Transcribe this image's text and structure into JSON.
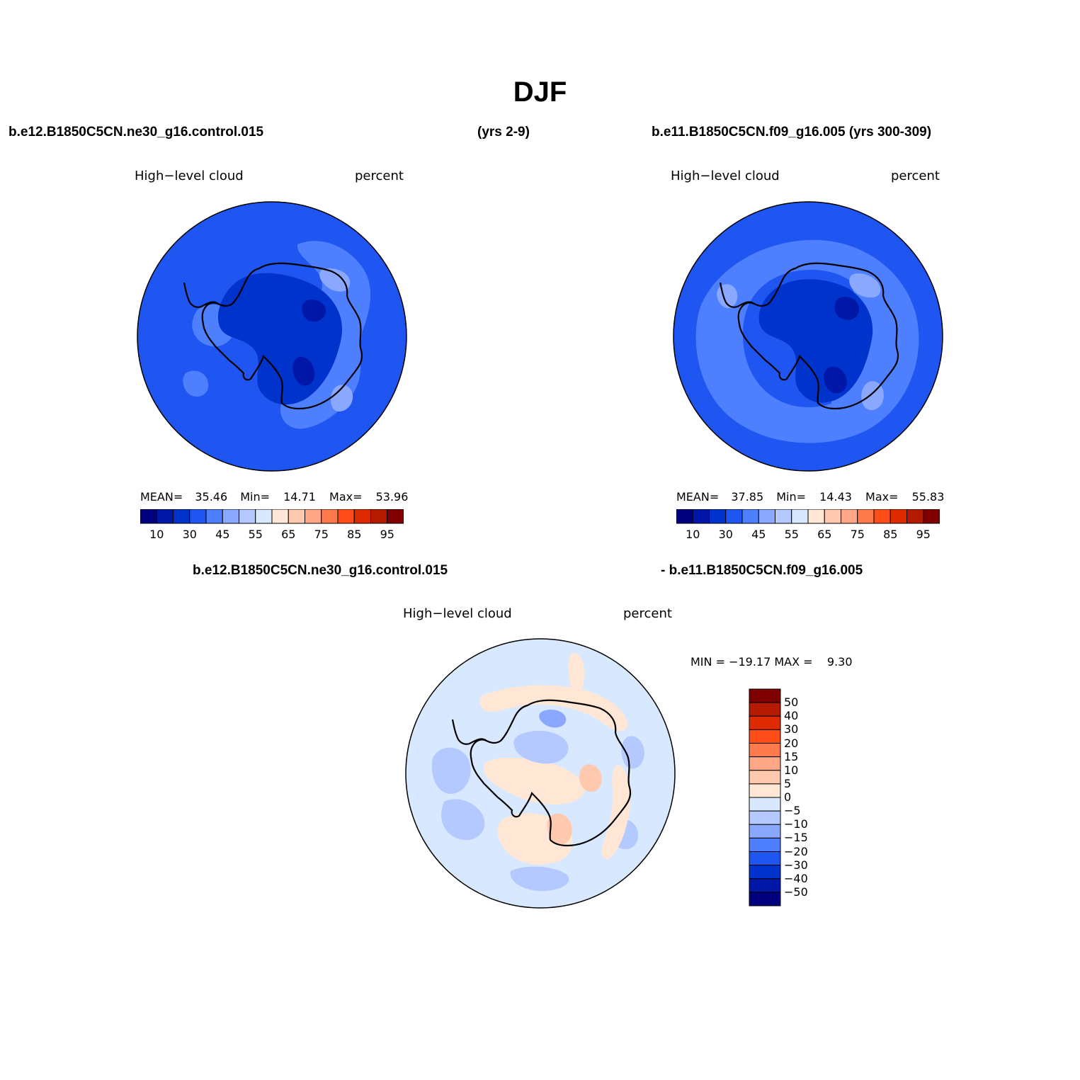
{
  "figure": {
    "title": "DJF",
    "top_left_case": "b.e12.B1850C5CN.ne30_g16.control.015",
    "top_left_years": "(yrs 2-9)",
    "top_right_case": "b.e11.B1850C5CN.f09_g16.005 (yrs 300-309)",
    "diff_case_a": "b.e12.B1850C5CN.ne30_g16.control.015",
    "diff_case_b": "- b.e11.B1850C5CN.f09_g16.005"
  },
  "panels": [
    {
      "variable": "High−level cloud",
      "units": "percent",
      "mean_label": "MEAN=",
      "mean": "35.46",
      "min_label": "Min=",
      "min": "14.71",
      "max_label": "Max=",
      "max": "53.96"
    },
    {
      "variable": "High−level cloud",
      "units": "percent",
      "mean_label": "MEAN=",
      "mean": "37.85",
      "min_label": "Min=",
      "min": "14.43",
      "max_label": "Max=",
      "max": "55.83"
    }
  ],
  "diff_panel": {
    "variable": "High−level cloud",
    "units": "percent",
    "minmax_text": "MIN = −19.17 MAX =    9.30"
  },
  "colorbar_main": {
    "colors": [
      "#00007f",
      "#0017a8",
      "#0033cc",
      "#1f55f0",
      "#4d7fff",
      "#8aa8ff",
      "#b3c9ff",
      "#d8e8ff",
      "#ffe6d5",
      "#ffc9b0",
      "#ffa686",
      "#ff7a4d",
      "#ff4d1a",
      "#dd2a00",
      "#b31a00",
      "#800000"
    ],
    "tick_labels": [
      "10",
      "30",
      "45",
      "55",
      "65",
      "75",
      "85",
      "95"
    ]
  },
  "colorbar_diff": {
    "colors_top_to_bottom": [
      "#800000",
      "#b31a00",
      "#dd2a00",
      "#ff4d1a",
      "#ff7a4d",
      "#ffa686",
      "#ffc9b0",
      "#ffe6d5",
      "#d8e8ff",
      "#b3c9ff",
      "#8aa8ff",
      "#4d7fff",
      "#1f55f0",
      "#0033cc",
      "#0017a8",
      "#00007f"
    ],
    "tick_labels": [
      "50",
      "40",
      "30",
      "20",
      "15",
      "10",
      "5",
      "0",
      "−5",
      "−10",
      "−15",
      "−20",
      "−30",
      "−40",
      "−50"
    ]
  },
  "map_colors": {
    "deep": "#0033cc",
    "mid": "#1f55f0",
    "light": "#4d7fff",
    "lighter": "#8aa8ff",
    "diff_background": "#d8e8ff",
    "diff_negative": "#b3c9ff",
    "diff_positive": "#ffe6d5",
    "diff_positive_strong": "#ffc9b0"
  }
}
